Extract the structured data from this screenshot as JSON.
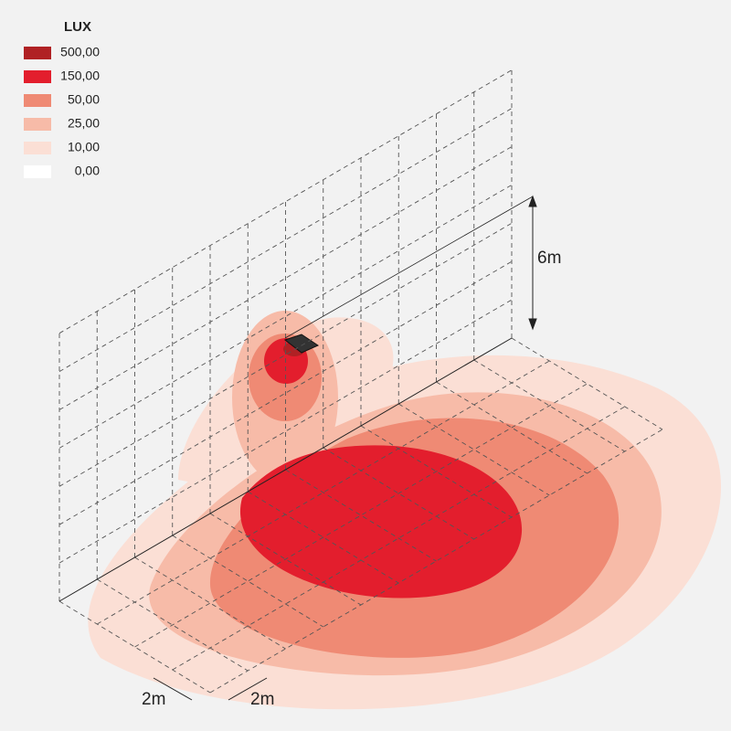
{
  "legend": {
    "title": "LUX",
    "items": [
      {
        "label": "500,00",
        "color": "#b02124"
      },
      {
        "label": "150,00",
        "color": "#e31e2d"
      },
      {
        "label": "50,00",
        "color": "#ef8a74"
      },
      {
        "label": "25,00",
        "color": "#f7bba8"
      },
      {
        "label": "10,00",
        "color": "#fbdfd5"
      },
      {
        "label": "0,00",
        "color": "#ffffff"
      }
    ]
  },
  "dimensions": {
    "height": "6m",
    "depth_a": "2m",
    "depth_b": "2m"
  }
}
